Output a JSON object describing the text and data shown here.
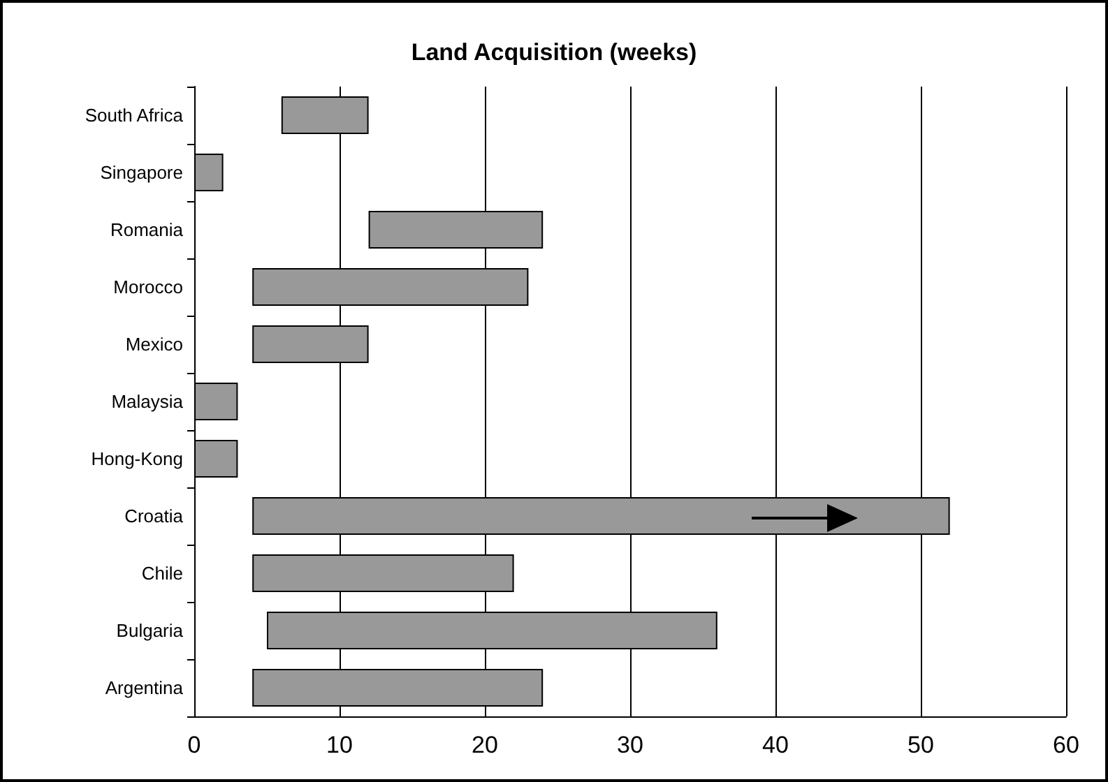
{
  "chart_data": {
    "type": "bar",
    "title": "Land Acquisition (weeks)",
    "orientation": "horizontal",
    "categories": [
      "South Africa",
      "Singapore",
      "Romania",
      "Morocco",
      "Mexico",
      "Malaysia",
      "Hong-Kong",
      "Croatia",
      "Chile",
      "Bulgaria",
      "Argentina"
    ],
    "base": [
      6,
      0,
      12,
      4,
      4,
      0,
      0,
      4,
      4,
      5,
      4
    ],
    "values": [
      6,
      2,
      12,
      19,
      8,
      3,
      3,
      48,
      18,
      31,
      20
    ],
    "color": "#999999",
    "xlim": [
      0,
      60
    ],
    "xticks": [
      0,
      10,
      20,
      30,
      40,
      50,
      60
    ],
    "grid": "x"
  }
}
